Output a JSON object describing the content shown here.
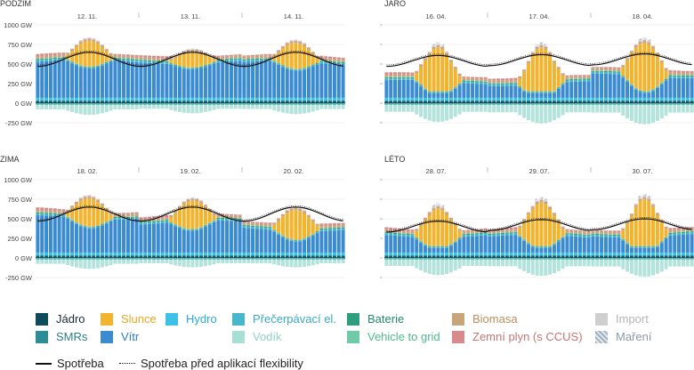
{
  "chart_data": {
    "type": "stacked-bar+line",
    "ylim": [
      -250,
      1000
    ],
    "yticks": [
      1000,
      750,
      500,
      250,
      0,
      -250
    ],
    "ytick_labels": [
      "1000 GW",
      "750 GW",
      "500 GW",
      "250 GW",
      "0 GW",
      "-250 GW"
    ],
    "panels": [
      {
        "title": "PODZIM",
        "days": [
          "12. 11.",
          "13. 11.",
          "14. 11."
        ],
        "solar_peaks": [
          330,
          200,
          330
        ],
        "wind": [
          460,
          460,
          440
        ],
        "demand_base": [
          560,
          560,
          560
        ],
        "neg": [
          110,
          90,
          100
        ]
      },
      {
        "title": "JARO",
        "days": [
          "16. 04.",
          "17. 04.",
          "18. 04."
        ],
        "solar_peaks": [
          560,
          560,
          620
        ],
        "wind": [
          200,
          180,
          280
        ],
        "demand_base": [
          540,
          550,
          560
        ],
        "neg": [
          200,
          220,
          230
        ]
      },
      {
        "title": "ZIMA",
        "days": [
          "18. 02.",
          "19. 02.",
          "20. 02."
        ],
        "solar_peaks": [
          360,
          360,
          380
        ],
        "wind": [
          450,
          380,
          300
        ],
        "demand_base": [
          560,
          560,
          560
        ],
        "neg": [
          100,
          80,
          80
        ]
      },
      {
        "title": "LÉTO",
        "days": [
          "28. 07.",
          "29. 07.",
          "30. 07."
        ],
        "solar_peaks": [
          480,
          560,
          600
        ],
        "wind": [
          220,
          200,
          220
        ],
        "demand_base": [
          400,
          420,
          430
        ],
        "neg": [
          180,
          190,
          200
        ]
      }
    ],
    "series_colors": {
      "jadro": "#0d4a5a",
      "smrs": "#2d8c95",
      "slunce": "#f2b42f",
      "vitr": "#3b8bd0",
      "hydro": "#3ec1e6",
      "precerpavaci": "#45b8cc",
      "vodik": "#a7ded5",
      "baterie": "#2f9e7c",
      "v2g": "#6fcaa8",
      "biomasa": "#c9a57c",
      "zemni_plyn": "#d88a8a",
      "import": "#cfcfcf",
      "mareni": "#b9c6cf"
    }
  },
  "legend": [
    {
      "label": "Jádro",
      "color": "#0d4a5a",
      "text_color": "#1a2a3a"
    },
    {
      "label": "Slunce",
      "color": "#f2b42f",
      "text_color": "#e8a71e"
    },
    {
      "label": "Hydro",
      "color": "#3ec1e6",
      "text_color": "#2aaad6"
    },
    {
      "label": "Přečerpávací el.",
      "color": "#45b8cc",
      "text_color": "#3aa9c0"
    },
    {
      "label": "Baterie",
      "color": "#2f9e7c",
      "text_color": "#238a6a"
    },
    {
      "label": "Biomasa",
      "color": "#c9a57c",
      "text_color": "#b88f60"
    },
    {
      "label": "Import",
      "color": "#cfcfcf",
      "text_color": "#b5b5b5"
    },
    {
      "label": "SMRs",
      "color": "#2d8c95",
      "text_color": "#2d7f88"
    },
    {
      "label": "Vítr",
      "color": "#3b8bd0",
      "text_color": "#2f7cc4"
    },
    {
      "label": "Vodík",
      "color": "#a7ded5",
      "text_color": "#8fd2c6"
    },
    {
      "label": "Vehicle to grid",
      "color": "#6fcaa8",
      "text_color": "#4fb88e"
    },
    {
      "label": "Zemní plyn (s CCUS)",
      "color": "#d88a8a",
      "text_color": "#c87474"
    },
    {
      "label": "Maření",
      "color": "hatch",
      "text_color": "#8a9aa6"
    }
  ],
  "lines": {
    "demand_label": "Spotřeba",
    "demand_pre_label": "Spotřeba před aplikací flexibility"
  }
}
